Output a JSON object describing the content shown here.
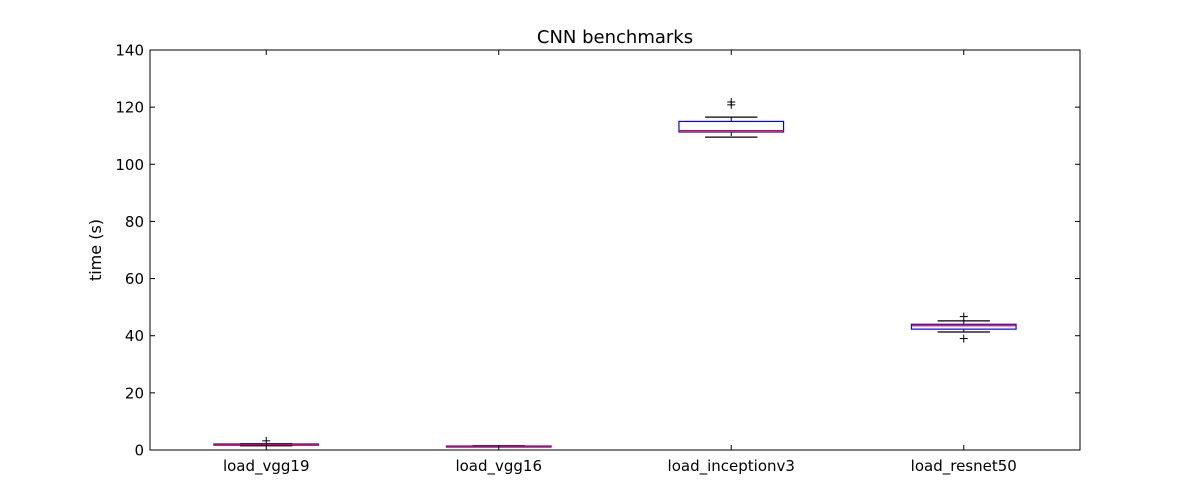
{
  "chart_data": {
    "type": "box",
    "title": "CNN benchmarks",
    "xlabel": "",
    "ylabel": "time (s)",
    "ylim": [
      0,
      140
    ],
    "yticks": [
      0,
      20,
      40,
      60,
      80,
      100,
      120,
      140
    ],
    "grid": false,
    "colors": {
      "box": "#0000ff",
      "median": "#ff0000",
      "whisker": "#000000",
      "flier": "#000000"
    },
    "categories": [
      "load_vgg19",
      "load_vgg16",
      "load_inceptionv3",
      "load_resnet50"
    ],
    "boxes": [
      {
        "category": "load_vgg19",
        "whislo": 1.5,
        "q1": 1.7,
        "med": 1.9,
        "q3": 2.1,
        "whishi": 2.2,
        "fliers": [
          3.2
        ]
      },
      {
        "category": "load_vgg16",
        "whislo": 1.1,
        "q1": 1.2,
        "med": 1.3,
        "q3": 1.4,
        "whishi": 1.5,
        "fliers": []
      },
      {
        "category": "load_inceptionv3",
        "whislo": 109.5,
        "q1": 111.3,
        "med": 111.8,
        "q3": 115.0,
        "whishi": 116.5,
        "fliers": [
          120.8,
          121.8
        ]
      },
      {
        "category": "load_resnet50",
        "whislo": 41.3,
        "q1": 42.3,
        "med": 43.5,
        "q3": 44.0,
        "whishi": 45.2,
        "fliers": [
          46.7,
          39.0
        ]
      }
    ]
  }
}
